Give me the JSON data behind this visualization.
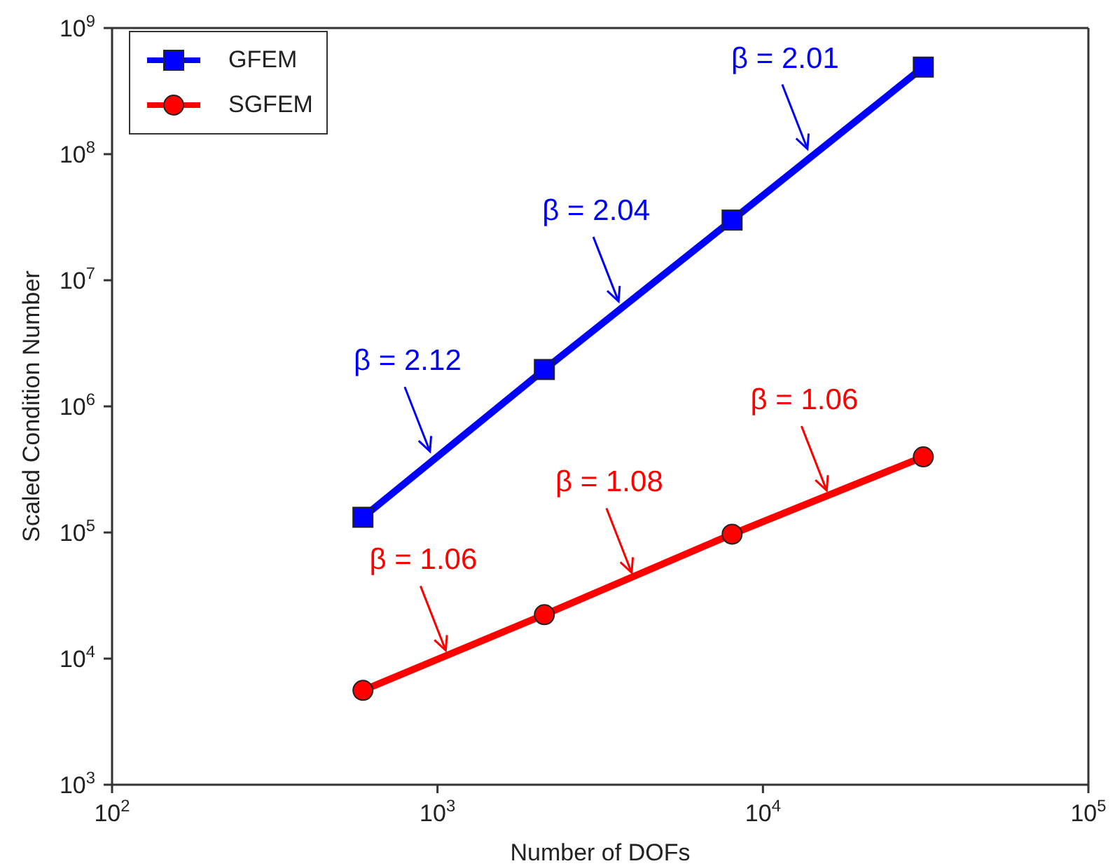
{
  "chart_data": {
    "type": "line",
    "xlabel": "Number of DOFs",
    "ylabel": "Scaled Condition Number",
    "x": [
      590,
      2130,
      8040,
      31100
    ],
    "series": [
      {
        "name": "GFEM",
        "color": "#0000ff",
        "marker": "square",
        "values": [
          132000,
          1960000,
          30000000,
          490000000
        ]
      },
      {
        "name": "SGFEM",
        "color": "#ff0000",
        "marker": "circle",
        "values": [
          5600,
          22300,
          97000,
          398000
        ]
      }
    ],
    "log": "xy",
    "xlim": [
      100,
      100000
    ],
    "ylim": [
      1000,
      1000000000
    ],
    "xticks": [
      {
        "value": 100,
        "label": "10$^{2}$"
      },
      {
        "value": 1000,
        "label": "10$^{3}$"
      },
      {
        "value": 10000,
        "label": "10$^{4}$"
      },
      {
        "value": 100000,
        "label": "10$^{5}$"
      }
    ],
    "yticks": [
      {
        "value": 1000,
        "label": "10$^{3}$"
      },
      {
        "value": 10000,
        "label": "10$^{4}$"
      },
      {
        "value": 100000,
        "label": "10$^{5}$"
      },
      {
        "value": 1000000,
        "label": "10$^{6}$"
      },
      {
        "value": 10000000,
        "label": "10$^{7}$"
      },
      {
        "value": 100000000,
        "label": "10$^{8}$"
      },
      {
        "value": 1000000000,
        "label": "10$^{9}$"
      }
    ],
    "grid": false,
    "legend": "top left",
    "line_style": "solid",
    "annotations": [
      {
        "text": "β = 2.12",
        "x": 948,
        "y": 440000
      },
      {
        "text": "β = 2.04",
        "x": 3600,
        "y": 6800000
      },
      {
        "text": "β = 2.01",
        "x": 13700,
        "y": 110000000
      },
      {
        "text": "β = 1.06",
        "x": 1060,
        "y": 11600
      },
      {
        "text": "β = 1.08",
        "x": 3950,
        "y": 48000
      },
      {
        "text": "β = 1.06",
        "x": 15700,
        "y": 215000
      }
    ]
  }
}
